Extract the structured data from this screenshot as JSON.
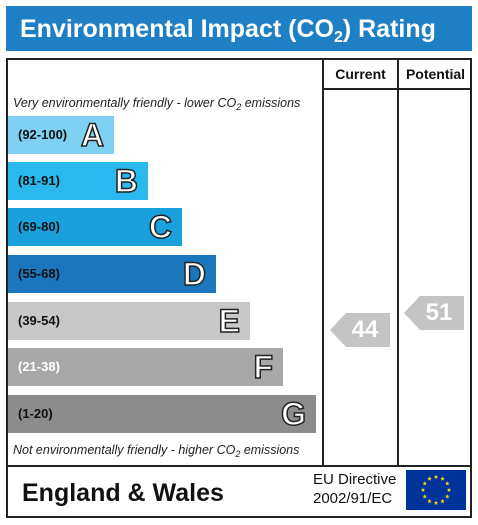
{
  "title": {
    "main": "Environmental Impact (CO",
    "subscript": "2",
    "suffix": ") Rating"
  },
  "columns": {
    "current": "Current",
    "potential": "Potential"
  },
  "notes": {
    "top_prefix": "Very environmentally friendly - lower CO",
    "top_sub": "2",
    "top_suffix": " emissions",
    "bottom_prefix": "Not environmentally friendly - higher CO",
    "bottom_sub": "2",
    "bottom_suffix": " emissions"
  },
  "bands": [
    {
      "range": "(92-100)",
      "letter": "A",
      "color": "#7fd0f3"
    },
    {
      "range": "(81-91)",
      "letter": "B",
      "color": "#29b9ef"
    },
    {
      "range": "(69-80)",
      "letter": "C",
      "color": "#1aa0dc"
    },
    {
      "range": "(55-68)",
      "letter": "D",
      "color": "#1a77bc"
    },
    {
      "range": "(39-54)",
      "letter": "E",
      "color": "#c8c8c8"
    },
    {
      "range": "(21-38)",
      "letter": "F",
      "color": "#a8a8a8"
    },
    {
      "range": "(1-20)",
      "letter": "G",
      "color": "#8c8c8c"
    }
  ],
  "ratings": {
    "current": "44",
    "potential": "51",
    "arrow_color": "#c4c4c4"
  },
  "footer": {
    "region": "England & Wales",
    "directive_line1": "EU Directive",
    "directive_line2": "2002/91/EC"
  },
  "colors": {
    "title_bar": "#1f7fc4",
    "eu_flag": "#003399",
    "eu_stars": "#ffdd00"
  },
  "icons": {
    "eu_flag": "eu-flag-icon"
  }
}
